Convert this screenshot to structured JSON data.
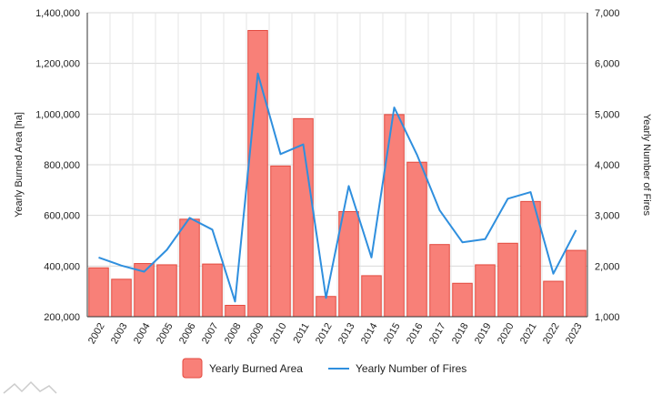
{
  "chart_data": {
    "type": "bar",
    "ylabel_left": "Yearly Burned Area [ha]",
    "ylabel_right": "Yearly Number of Fires",
    "categories": [
      "2002",
      "2003",
      "2004",
      "2005",
      "2006",
      "2007",
      "2008",
      "2009",
      "2010",
      "2011",
      "2012",
      "2013",
      "2014",
      "2015",
      "2016",
      "2017",
      "2018",
      "2019",
      "2020",
      "2021",
      "2022",
      "2023"
    ],
    "y_left": {
      "min": 200000,
      "max": 1400000,
      "ticks": [
        "200,000",
        "400,000",
        "600,000",
        "800,000",
        "1,000,000",
        "1,200,000",
        "1,400,000"
      ]
    },
    "y_right": {
      "min": 1000,
      "max": 7000,
      "ticks": [
        "1,000",
        "2,000",
        "3,000",
        "4,000",
        "5,000",
        "6,000",
        "7,000"
      ]
    },
    "grid": true,
    "legend_position": "bottom",
    "series": [
      {
        "name": "Yearly Burned Area",
        "kind": "bar",
        "axis": "left",
        "color": "#f88078",
        "stroke": "#e34a3f",
        "values": [
          393000,
          348000,
          410000,
          405000,
          585000,
          408000,
          245000,
          1330000,
          795000,
          982000,
          280000,
          615000,
          362000,
          998000,
          810000,
          485000,
          332000,
          405000,
          490000,
          655000,
          340000,
          462000
        ]
      },
      {
        "name": "Yearly Number of Fires",
        "kind": "line",
        "axis": "right",
        "color": "#2f8fde",
        "values": [
          2170,
          2010,
          1890,
          2320,
          2950,
          2720,
          1300,
          5800,
          4210,
          4400,
          1370,
          3580,
          2170,
          5130,
          4200,
          3100,
          2470,
          2530,
          3330,
          3460,
          1850,
          2710
        ]
      }
    ]
  }
}
